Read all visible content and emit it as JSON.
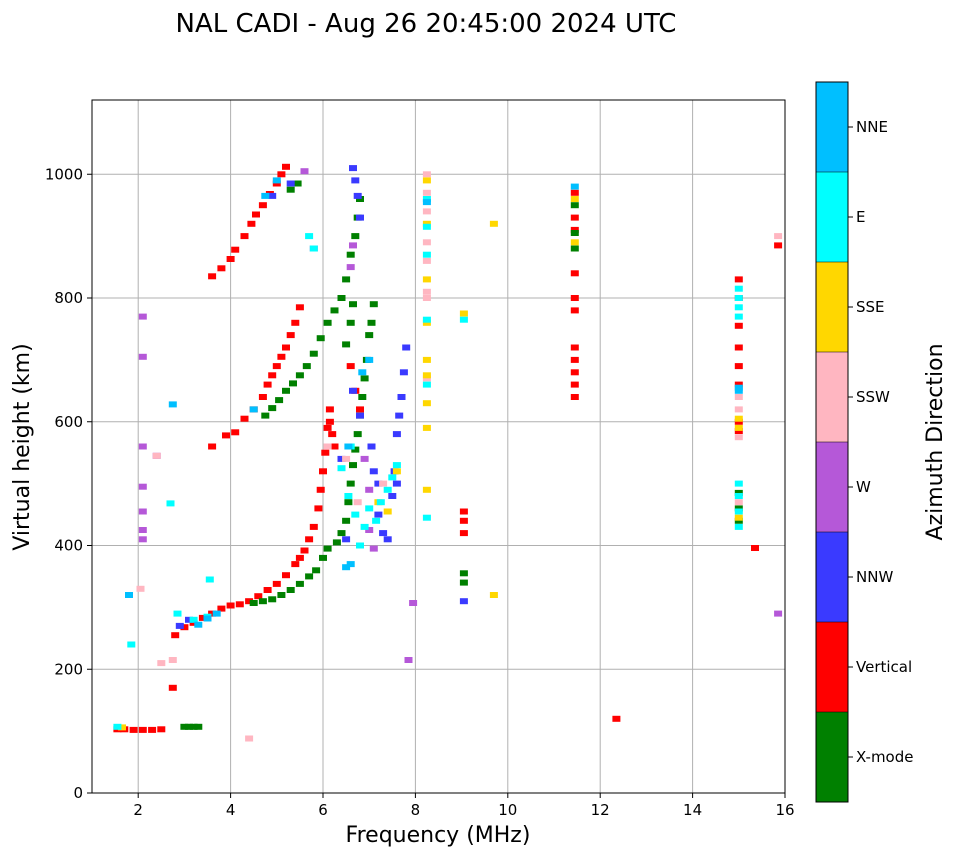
{
  "chart_data": {
    "type": "scatter",
    "title": "NAL CADI - Aug 26 20:45:00 2024 UTC",
    "xlabel": "Frequency (MHz)",
    "ylabel": "Virtual height (km)",
    "xlim": [
      1,
      16
    ],
    "ylim": [
      0,
      1120
    ],
    "xticks": [
      2,
      4,
      6,
      8,
      10,
      12,
      14,
      16
    ],
    "yticks": [
      0,
      200,
      400,
      600,
      800,
      1000
    ],
    "grid": true,
    "colorbar": {
      "label": "Azimuth Direction",
      "categories": [
        {
          "name": "X-mode",
          "color": "#008000"
        },
        {
          "name": "Vertical",
          "color": "#ff0000"
        },
        {
          "name": "NNW",
          "color": "#3a3aff"
        },
        {
          "name": "W",
          "color": "#b558d8"
        },
        {
          "name": "SSW",
          "color": "#ffb6c1"
        },
        {
          "name": "SSE",
          "color": "#ffd700"
        },
        {
          "name": "E",
          "color": "#00ffff"
        },
        {
          "name": "NNE",
          "color": "#00bfff"
        }
      ]
    },
    "traces": [
      {
        "cat": "Vertical",
        "points": [
          [
            1.55,
            103
          ],
          [
            1.7,
            103
          ],
          [
            1.9,
            102
          ],
          [
            2.1,
            102
          ],
          [
            2.3,
            102
          ],
          [
            2.5,
            103
          ],
          [
            2.75,
            170
          ],
          [
            2.8,
            255
          ],
          [
            3.0,
            268
          ],
          [
            3.2,
            275
          ],
          [
            3.4,
            283
          ],
          [
            3.6,
            290
          ],
          [
            3.8,
            298
          ],
          [
            4.0,
            303
          ],
          [
            4.2,
            305
          ],
          [
            4.4,
            310
          ],
          [
            4.6,
            318
          ],
          [
            4.8,
            328
          ],
          [
            5.0,
            338
          ],
          [
            5.2,
            352
          ],
          [
            5.4,
            370
          ],
          [
            5.5,
            380
          ],
          [
            5.6,
            392
          ],
          [
            5.7,
            410
          ],
          [
            5.8,
            430
          ],
          [
            5.9,
            460
          ],
          [
            5.95,
            490
          ],
          [
            6.0,
            520
          ],
          [
            6.05,
            550
          ],
          [
            6.1,
            590
          ],
          [
            6.15,
            620
          ]
        ]
      },
      {
        "cat": "Vertical",
        "points": [
          [
            3.6,
            560
          ],
          [
            3.9,
            578
          ],
          [
            4.1,
            583
          ],
          [
            4.3,
            605
          ],
          [
            4.5,
            620
          ],
          [
            4.7,
            640
          ],
          [
            4.8,
            660
          ],
          [
            4.9,
            675
          ],
          [
            5.0,
            690
          ],
          [
            5.1,
            705
          ],
          [
            5.2,
            720
          ],
          [
            5.3,
            740
          ],
          [
            5.4,
            760
          ],
          [
            5.5,
            785
          ]
        ]
      },
      {
        "cat": "Vertical",
        "points": [
          [
            3.6,
            835
          ],
          [
            3.8,
            848
          ],
          [
            4.0,
            863
          ],
          [
            4.1,
            878
          ],
          [
            4.3,
            900
          ],
          [
            4.45,
            920
          ],
          [
            4.55,
            935
          ],
          [
            4.7,
            950
          ],
          [
            4.85,
            968
          ],
          [
            5.0,
            985
          ],
          [
            5.1,
            1000
          ],
          [
            5.2,
            1012
          ]
        ]
      },
      {
        "cat": "Vertical",
        "points": [
          [
            9.05,
            420
          ],
          [
            9.05,
            440
          ],
          [
            9.05,
            455
          ],
          [
            11.45,
            640
          ],
          [
            11.45,
            660
          ],
          [
            11.45,
            680
          ],
          [
            11.45,
            700
          ],
          [
            11.45,
            720
          ],
          [
            11.45,
            780
          ],
          [
            11.45,
            800
          ],
          [
            11.45,
            840
          ],
          [
            11.45,
            910
          ],
          [
            11.45,
            930
          ],
          [
            11.45,
            970
          ],
          [
            12.35,
            120
          ],
          [
            15.0,
            585
          ],
          [
            15.0,
            600
          ],
          [
            15.0,
            660
          ],
          [
            15.0,
            690
          ],
          [
            15.0,
            720
          ],
          [
            15.0,
            755
          ],
          [
            15.0,
            800
          ],
          [
            15.0,
            830
          ],
          [
            15.35,
            396
          ],
          [
            15.85,
            885
          ],
          [
            6.15,
            600
          ],
          [
            6.2,
            580
          ],
          [
            6.25,
            560
          ],
          [
            6.6,
            690
          ],
          [
            6.7,
            650
          ],
          [
            6.8,
            620
          ]
        ]
      },
      {
        "cat": "X-mode",
        "points": [
          [
            3.0,
            107
          ],
          [
            3.1,
            107
          ],
          [
            3.2,
            107
          ],
          [
            3.3,
            107
          ],
          [
            4.5,
            307
          ],
          [
            4.7,
            310
          ],
          [
            4.9,
            313
          ],
          [
            5.1,
            320
          ],
          [
            5.3,
            328
          ],
          [
            5.5,
            338
          ],
          [
            5.7,
            350
          ],
          [
            5.85,
            360
          ],
          [
            6.0,
            380
          ],
          [
            6.1,
            395
          ],
          [
            6.3,
            405
          ],
          [
            6.4,
            420
          ],
          [
            6.5,
            440
          ],
          [
            6.55,
            470
          ],
          [
            6.6,
            500
          ],
          [
            6.65,
            530
          ],
          [
            6.7,
            555
          ],
          [
            6.75,
            580
          ],
          [
            6.8,
            610
          ],
          [
            6.85,
            640
          ],
          [
            6.9,
            670
          ],
          [
            6.95,
            700
          ],
          [
            7.0,
            740
          ],
          [
            7.05,
            760
          ],
          [
            7.1,
            790
          ]
        ]
      },
      {
        "cat": "X-mode",
        "points": [
          [
            4.75,
            610
          ],
          [
            4.9,
            622
          ],
          [
            5.05,
            635
          ],
          [
            5.2,
            650
          ],
          [
            5.35,
            662
          ],
          [
            5.5,
            675
          ],
          [
            5.65,
            690
          ],
          [
            5.8,
            710
          ],
          [
            5.95,
            735
          ],
          [
            6.1,
            760
          ],
          [
            6.25,
            780
          ],
          [
            6.4,
            800
          ],
          [
            6.5,
            830
          ],
          [
            6.6,
            870
          ],
          [
            6.7,
            900
          ],
          [
            6.75,
            930
          ],
          [
            6.8,
            960
          ],
          [
            5.3,
            975
          ],
          [
            5.45,
            985
          ],
          [
            6.5,
            725
          ],
          [
            6.6,
            760
          ],
          [
            6.65,
            790
          ],
          [
            9.05,
            340
          ],
          [
            9.05,
            355
          ],
          [
            11.45,
            880
          ],
          [
            11.45,
            905
          ],
          [
            11.45,
            950
          ],
          [
            15.0,
            440
          ],
          [
            15.0,
            460
          ],
          [
            15.0,
            485
          ]
        ]
      },
      {
        "cat": "NNW",
        "points": [
          [
            6.65,
            1010
          ],
          [
            6.7,
            990
          ],
          [
            6.75,
            965
          ],
          [
            6.8,
            930
          ],
          [
            6.65,
            650
          ],
          [
            6.8,
            610
          ],
          [
            7.05,
            560
          ],
          [
            7.1,
            520
          ],
          [
            7.2,
            500
          ],
          [
            7.2,
            450
          ],
          [
            7.3,
            420
          ],
          [
            7.4,
            410
          ],
          [
            7.55,
            520
          ],
          [
            7.6,
            580
          ],
          [
            7.65,
            610
          ],
          [
            7.7,
            640
          ],
          [
            7.75,
            680
          ],
          [
            7.8,
            720
          ],
          [
            7.6,
            500
          ],
          [
            7.5,
            480
          ],
          [
            9.05,
            310
          ],
          [
            5.3,
            985
          ],
          [
            4.9,
            965
          ],
          [
            3.1,
            280
          ],
          [
            2.9,
            270
          ],
          [
            6.4,
            540
          ],
          [
            6.5,
            410
          ]
        ]
      },
      {
        "cat": "W",
        "points": [
          [
            2.1,
            770
          ],
          [
            2.1,
            705
          ],
          [
            2.1,
            560
          ],
          [
            2.1,
            495
          ],
          [
            2.1,
            455
          ],
          [
            2.1,
            425
          ],
          [
            2.1,
            410
          ],
          [
            2.4,
            545
          ],
          [
            5.6,
            1005
          ],
          [
            5.8,
            880
          ],
          [
            6.65,
            885
          ],
          [
            6.6,
            850
          ],
          [
            15.85,
            290
          ],
          [
            7.0,
            425
          ],
          [
            7.1,
            395
          ],
          [
            7.85,
            215
          ],
          [
            7.95,
            307
          ],
          [
            6.9,
            540
          ],
          [
            7.0,
            490
          ]
        ]
      },
      {
        "cat": "SSW",
        "points": [
          [
            2.05,
            330
          ],
          [
            2.4,
            545
          ],
          [
            2.5,
            210
          ],
          [
            2.75,
            215
          ],
          [
            4.4,
            88
          ],
          [
            8.25,
            800
          ],
          [
            8.25,
            810
          ],
          [
            8.25,
            860
          ],
          [
            8.25,
            890
          ],
          [
            8.25,
            940
          ],
          [
            8.25,
            970
          ],
          [
            8.25,
            1000
          ],
          [
            8.25,
            670
          ],
          [
            15.0,
            620
          ],
          [
            15.0,
            640
          ],
          [
            15.0,
            575
          ],
          [
            15.0,
            470
          ],
          [
            15.85,
            900
          ],
          [
            6.1,
            560
          ],
          [
            6.5,
            540
          ],
          [
            6.75,
            470
          ],
          [
            7.3,
            500
          ]
        ]
      },
      {
        "cat": "SSE",
        "points": [
          [
            1.65,
            106
          ],
          [
            8.25,
            990
          ],
          [
            8.25,
            920
          ],
          [
            8.25,
            830
          ],
          [
            8.25,
            760
          ],
          [
            8.25,
            700
          ],
          [
            8.25,
            675
          ],
          [
            8.25,
            630
          ],
          [
            8.25,
            590
          ],
          [
            8.25,
            490
          ],
          [
            9.05,
            775
          ],
          [
            9.7,
            920
          ],
          [
            9.7,
            320
          ],
          [
            15.0,
            590
          ],
          [
            15.0,
            605
          ],
          [
            15.0,
            445
          ],
          [
            11.45,
            960
          ],
          [
            11.45,
            890
          ],
          [
            7.2,
            470
          ],
          [
            7.4,
            455
          ],
          [
            7.6,
            520
          ]
        ]
      },
      {
        "cat": "E",
        "points": [
          [
            1.55,
            107
          ],
          [
            2.85,
            290
          ],
          [
            3.2,
            280
          ],
          [
            3.5,
            285
          ],
          [
            8.25,
            960
          ],
          [
            8.25,
            915
          ],
          [
            8.25,
            870
          ],
          [
            8.25,
            765
          ],
          [
            8.25,
            660
          ],
          [
            8.25,
            445
          ],
          [
            9.05,
            765
          ],
          [
            15.0,
            770
          ],
          [
            15.0,
            785
          ],
          [
            15.0,
            800
          ],
          [
            15.0,
            815
          ],
          [
            15.0,
            500
          ],
          [
            15.0,
            480
          ],
          [
            15.0,
            455
          ],
          [
            15.0,
            430
          ],
          [
            6.4,
            525
          ],
          [
            6.55,
            480
          ],
          [
            6.7,
            450
          ],
          [
            6.9,
            430
          ],
          [
            7.0,
            460
          ],
          [
            7.15,
            440
          ],
          [
            7.25,
            470
          ],
          [
            7.4,
            490
          ],
          [
            7.5,
            510
          ],
          [
            7.6,
            530
          ],
          [
            6.8,
            400
          ],
          [
            6.6,
            560
          ],
          [
            5.8,
            880
          ],
          [
            5.7,
            900
          ],
          [
            2.7,
            468
          ],
          [
            3.55,
            345
          ],
          [
            1.85,
            240
          ]
        ]
      },
      {
        "cat": "NNE",
        "points": [
          [
            3.3,
            272
          ],
          [
            3.5,
            282
          ],
          [
            3.7,
            290
          ],
          [
            4.5,
            620
          ],
          [
            5.0,
            990
          ],
          [
            4.75,
            965
          ],
          [
            6.5,
            365
          ],
          [
            6.6,
            370
          ],
          [
            6.55,
            560
          ],
          [
            6.85,
            680
          ],
          [
            7.0,
            700
          ],
          [
            8.25,
            955
          ],
          [
            11.45,
            980
          ],
          [
            15.0,
            650
          ],
          [
            15.0,
            655
          ],
          [
            1.8,
            320
          ],
          [
            2.75,
            628
          ]
        ]
      }
    ]
  }
}
